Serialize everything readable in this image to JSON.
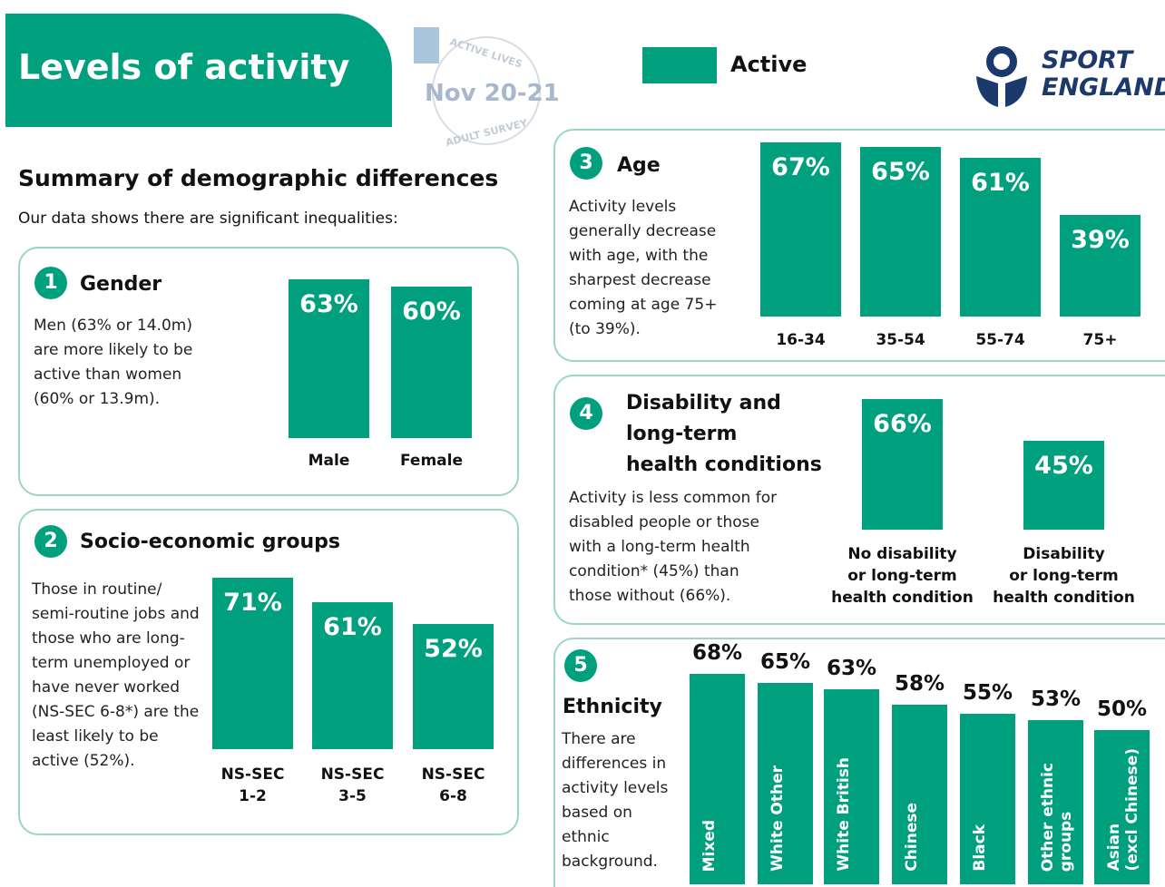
{
  "header": {
    "title": "Levels of activity",
    "badge_top": "ACTIVE LIVES",
    "badge_date": "Nov 20-21",
    "badge_bottom": "ADULT SURVEY",
    "legend_label": "Active",
    "logo_line1": "SPORT",
    "logo_line2": "ENGLAND"
  },
  "summary": {
    "title": "Summary of demographic differences",
    "intro": "Our data shows there are significant inequalities:"
  },
  "chart_data": [
    {
      "type": "bar",
      "number": "1",
      "title": "Gender",
      "description": "Men (63% or 14.0m) are more likely to be active than women (60% or 13.9m).",
      "color": "#00a07e",
      "categories": [
        "Male",
        "Female"
      ],
      "values": [
        63,
        60
      ],
      "value_labels": [
        "63%",
        "60%"
      ]
    },
    {
      "type": "bar",
      "number": "2",
      "title": "Socio-economic groups",
      "description": "Those in routine/ semi-routine jobs and those who are long-term unemployed or have never worked (NS-SEC 6-8*) are the least likely to be active (52%).",
      "color": "#00a07e",
      "categories": [
        "NS-SEC\n1-2",
        "NS-SEC\n3-5",
        "NS-SEC\n6-8"
      ],
      "values": [
        71,
        61,
        52
      ],
      "value_labels": [
        "71%",
        "61%",
        "52%"
      ]
    },
    {
      "type": "bar",
      "number": "3",
      "title": "Age",
      "description": "Activity levels generally decrease with age, with the sharpest decrease coming at age 75+ (to 39%).",
      "color": "#00a07e",
      "categories": [
        "16-34",
        "35-54",
        "55-74",
        "75+"
      ],
      "values": [
        67,
        65,
        61,
        39
      ],
      "value_labels": [
        "67%",
        "65%",
        "61%",
        "39%"
      ]
    },
    {
      "type": "bar",
      "number": "4",
      "title": "Disability and\nlong-term\nhealth conditions",
      "description": "Activity is less common for disabled people or those with a long-term health condition* (45%) than those without (66%).",
      "color": "#00a07e",
      "categories": [
        "No disability\nor long-term\nhealth condition",
        "Disability\nor long-term\nhealth condition"
      ],
      "values": [
        66,
        45
      ],
      "value_labels": [
        "66%",
        "45%"
      ]
    },
    {
      "type": "bar",
      "number": "5",
      "title": "Ethnicity",
      "description": "There are differences in activity levels based on ethnic background.",
      "color": "#00a07e",
      "categories": [
        "Mixed",
        "White Other",
        "White British",
        "Chinese",
        "Black",
        "Other ethnic\ngroups",
        "Asian\n(excl Chinese)"
      ],
      "values": [
        68,
        65,
        63,
        58,
        55,
        53,
        50
      ],
      "value_labels": [
        "68%",
        "65%",
        "63%",
        "58%",
        "55%",
        "53%",
        "50%"
      ]
    }
  ]
}
